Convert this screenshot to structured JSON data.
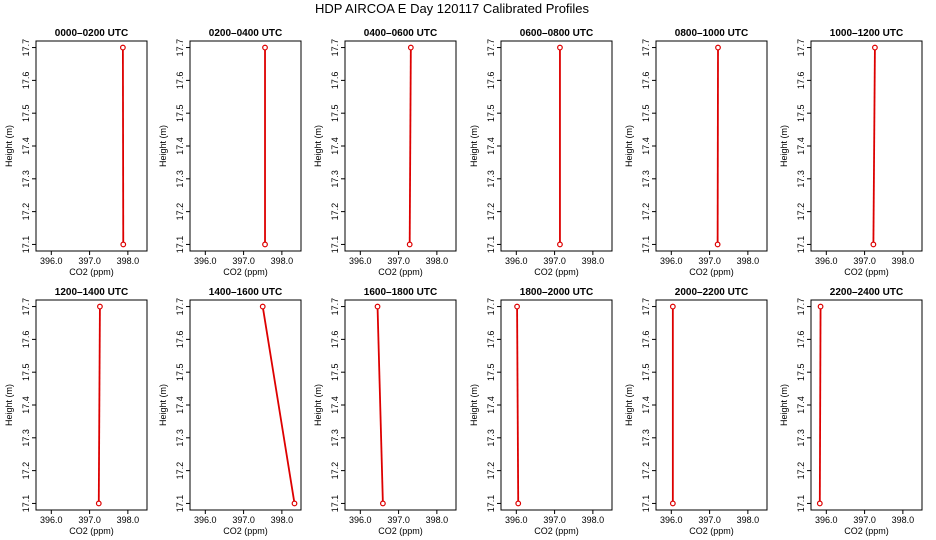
{
  "page_title": "HDP AIRCOA E  Day 120117  Calibrated Profiles",
  "chart_data": {
    "type": "line",
    "title": "HDP AIRCOA E  Day 120117  Calibrated Profiles",
    "xlabel": "CO2 (ppm)",
    "ylabel": "Height (m)",
    "xlim": [
      395.6,
      398.5
    ],
    "ylim": [
      17.08,
      17.72
    ],
    "xticks": [
      "396.0",
      "397.0",
      "398.0"
    ],
    "yticks": [
      "17.1",
      "17.2",
      "17.3",
      "17.4",
      "17.5",
      "17.6",
      "17.7"
    ],
    "line_color": "#dd0000",
    "grid": false,
    "panels": [
      {
        "title": "0000–0200 UTC",
        "points": [
          {
            "x": 397.88,
            "y": 17.1
          },
          {
            "x": 397.87,
            "y": 17.7
          }
        ]
      },
      {
        "title": "0200–0400 UTC",
        "points": [
          {
            "x": 397.56,
            "y": 17.1
          },
          {
            "x": 397.56,
            "y": 17.7
          }
        ]
      },
      {
        "title": "0400–0600 UTC",
        "points": [
          {
            "x": 397.29,
            "y": 17.1
          },
          {
            "x": 397.32,
            "y": 17.7
          }
        ]
      },
      {
        "title": "0600–0800 UTC",
        "points": [
          {
            "x": 397.14,
            "y": 17.1
          },
          {
            "x": 397.14,
            "y": 17.7
          }
        ]
      },
      {
        "title": "0800–1000 UTC",
        "points": [
          {
            "x": 397.21,
            "y": 17.1
          },
          {
            "x": 397.22,
            "y": 17.7
          }
        ]
      },
      {
        "title": "1000–1200 UTC",
        "points": [
          {
            "x": 397.23,
            "y": 17.1
          },
          {
            "x": 397.27,
            "y": 17.7
          }
        ]
      },
      {
        "title": "1200–1400 UTC",
        "points": [
          {
            "x": 397.24,
            "y": 17.1
          },
          {
            "x": 397.27,
            "y": 17.7
          }
        ]
      },
      {
        "title": "1400–1600 UTC",
        "points": [
          {
            "x": 398.33,
            "y": 17.1
          },
          {
            "x": 397.5,
            "y": 17.7
          }
        ]
      },
      {
        "title": "1600–1800 UTC",
        "points": [
          {
            "x": 396.59,
            "y": 17.1
          },
          {
            "x": 396.45,
            "y": 17.7
          }
        ]
      },
      {
        "title": "1800–2000 UTC",
        "points": [
          {
            "x": 396.05,
            "y": 17.1
          },
          {
            "x": 396.02,
            "y": 17.7
          }
        ]
      },
      {
        "title": "2000–2200 UTC",
        "points": [
          {
            "x": 396.04,
            "y": 17.1
          },
          {
            "x": 396.04,
            "y": 17.7
          }
        ]
      },
      {
        "title": "2200–2400 UTC",
        "points": [
          {
            "x": 395.83,
            "y": 17.1
          },
          {
            "x": 395.85,
            "y": 17.7
          }
        ]
      }
    ]
  }
}
